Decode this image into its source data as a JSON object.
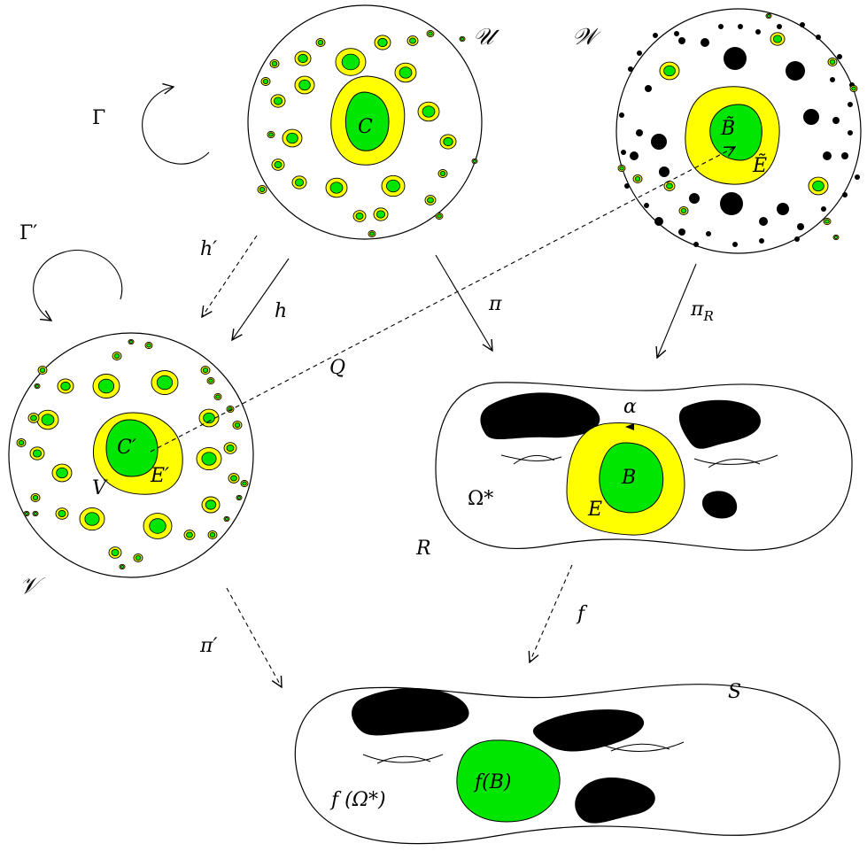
{
  "colors": {
    "yellow": "#ffff00",
    "green": "#00e600",
    "black": "#000000",
    "stroke": "#000000"
  },
  "labels": {
    "U": "𝒰",
    "W": "𝒲",
    "V": "𝒱",
    "Gamma": "Γ",
    "GammaPrime": "Γ′",
    "hPrime": "h′",
    "h": "h",
    "pi": "π",
    "piR": "π",
    "piR_sub": "R",
    "Q": "Q",
    "C": "C",
    "CPrime": "C′",
    "EPrime": "E′",
    "Vset": "V",
    "Btilde": "B̃",
    "Etilde": "Ẽ",
    "alpha": "α",
    "B": "B",
    "E": "E",
    "OmegaStar": "Ω*",
    "R": "R",
    "f": "f",
    "piPrime": "π′",
    "S": "S",
    "fB": "f(B)",
    "fOmega": "f (Ω*)"
  }
}
